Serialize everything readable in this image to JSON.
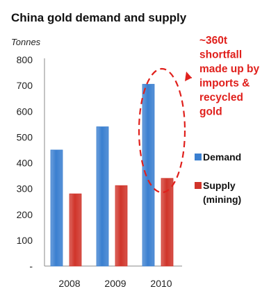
{
  "chart_data": {
    "type": "bar",
    "title": "China gold demand and supply",
    "unit_label": "Tonnes",
    "xlabel": "",
    "ylabel": "",
    "categories": [
      "2008",
      "2009",
      "2010"
    ],
    "series": [
      {
        "name": "Demand",
        "values": [
          450,
          540,
          705
        ],
        "color": "#3a7fd0"
      },
      {
        "name": "Supply (mining)",
        "name_lines": [
          "Supply",
          "(mining)"
        ],
        "values": [
          280,
          312,
          340
        ],
        "color": "#d0342a"
      }
    ],
    "y_ticks": [
      "800",
      "700",
      "600",
      "500",
      "400",
      "300",
      "200",
      "100",
      "-"
    ],
    "ylim": [
      0,
      800
    ],
    "grid": false,
    "legend_position": "right",
    "annotation": {
      "lines": [
        "~360t",
        "shortfall",
        "made up by",
        "imports &",
        "recycled",
        "gold"
      ],
      "color": "#e0201c"
    }
  }
}
